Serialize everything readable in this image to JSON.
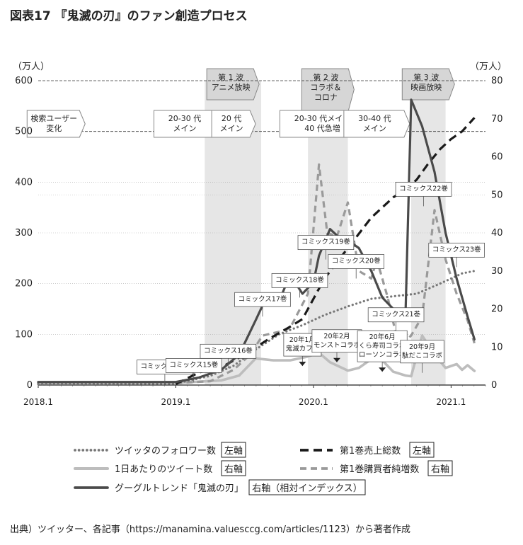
{
  "figure": {
    "title": "図表17 『鬼滅の刃』のファン創造プロセス",
    "source": "出典）ツイッター、各記事（https://manamina.valuesccg.com/articles/1123）から著者作成"
  },
  "chart_data": {
    "type": "line",
    "left_axis": {
      "unit": "（万人）",
      "ticks": [
        0,
        100,
        200,
        300,
        400,
        500,
        600
      ],
      "ylim": [
        0,
        600
      ]
    },
    "right_axis": {
      "unit": "（万人）",
      "ticks": [
        0,
        10,
        20,
        30,
        40,
        50,
        60,
        70,
        80
      ],
      "ylim": [
        0,
        80
      ]
    },
    "x_ticks": [
      {
        "label": "2018.1",
        "x": 2018.0
      },
      {
        "label": "2019.1",
        "x": 2019.0
      },
      {
        "label": "2020.1",
        "x": 2020.0
      },
      {
        "label": "2021.1",
        "x": 2021.0
      }
    ],
    "xlim": [
      2018.0,
      2021.25
    ],
    "shaded_periods": [
      {
        "from": 2019.21,
        "to": 2019.62,
        "label": "第 1 波\nアニメ放映"
      },
      {
        "from": 2019.96,
        "to": 2020.25,
        "label": "第 2 波\nコラボ＆\nコロナ"
      },
      {
        "from": 2020.71,
        "to": 2020.96,
        "label": "第 3 波\n映画放映"
      }
    ],
    "phases": [
      {
        "at": 2018.13,
        "label": "検索ユーザー\n変化"
      },
      {
        "at": 2019.08,
        "label": "20-30 代\nメイン"
      },
      {
        "at": 2019.42,
        "label": "20 代\nメイン"
      },
      {
        "at": 2020.08,
        "label": "20-30 代メイン\n40 代急増"
      },
      {
        "at": 2020.46,
        "label": "30-40 代\nメイン"
      }
    ],
    "series": [
      {
        "name": "ツイッタのフォロワー数",
        "axis_note": "左軸",
        "axis": "left",
        "style": "dotted",
        "color": "#777777",
        "points": [
          [
            2018.0,
            2
          ],
          [
            2019.0,
            3
          ],
          [
            2019.08,
            8
          ],
          [
            2019.25,
            18
          ],
          [
            2019.42,
            38
          ],
          [
            2019.58,
            70
          ],
          [
            2019.75,
            100
          ],
          [
            2019.92,
            118
          ],
          [
            2020.08,
            138
          ],
          [
            2020.25,
            155
          ],
          [
            2020.42,
            170
          ],
          [
            2020.58,
            175
          ],
          [
            2020.75,
            180
          ],
          [
            2020.92,
            200
          ],
          [
            2021.08,
            220
          ],
          [
            2021.17,
            225
          ]
        ]
      },
      {
        "name": "第1巻売上総数",
        "axis_note": "左軸",
        "axis": "left",
        "style": "dashed",
        "color": "#1a1a1a",
        "points": [
          [
            2019.0,
            2
          ],
          [
            2019.17,
            25
          ],
          [
            2019.33,
            35
          ],
          [
            2019.5,
            60
          ],
          [
            2019.67,
            90
          ],
          [
            2019.83,
            115
          ],
          [
            2019.92,
            130
          ],
          [
            2020.08,
            210
          ],
          [
            2020.25,
            270
          ],
          [
            2020.42,
            330
          ],
          [
            2020.58,
            370
          ],
          [
            2020.67,
            385
          ],
          [
            2020.75,
            405
          ],
          [
            2020.83,
            435
          ],
          [
            2020.92,
            465
          ],
          [
            2021.0,
            485
          ],
          [
            2021.08,
            500
          ],
          [
            2021.17,
            527
          ]
        ]
      },
      {
        "name": "1日あたりのツイート数",
        "axis_note": "右軸",
        "axis": "right",
        "style": "solid",
        "color": "#bdbdbd",
        "points": [
          [
            2018.0,
            0.5
          ],
          [
            2019.0,
            0.6
          ],
          [
            2019.17,
            0.9
          ],
          [
            2019.33,
            1.2
          ],
          [
            2019.46,
            2.5
          ],
          [
            2019.58,
            7
          ],
          [
            2019.71,
            6.5
          ],
          [
            2019.83,
            6.5
          ],
          [
            2019.96,
            7.5
          ],
          [
            2020.04,
            8.5
          ],
          [
            2020.12,
            6
          ],
          [
            2020.25,
            3.8
          ],
          [
            2020.33,
            4.5
          ],
          [
            2020.42,
            6.8
          ],
          [
            2020.5,
            6.5
          ],
          [
            2020.58,
            3.5
          ],
          [
            2020.67,
            2.5
          ],
          [
            2020.71,
            2.3
          ],
          [
            2020.79,
            13
          ],
          [
            2020.88,
            8
          ],
          [
            2020.96,
            4.5
          ],
          [
            2021.04,
            5.5
          ],
          [
            2021.08,
            4
          ],
          [
            2021.12,
            5.2
          ],
          [
            2021.17,
            3.7
          ]
        ]
      },
      {
        "name": "第1巻購買者純増数",
        "axis_note": "右軸",
        "axis": "right",
        "style": "dashed",
        "color": "#9a9a9a",
        "points": [
          [
            2019.0,
            0.5
          ],
          [
            2019.25,
            1
          ],
          [
            2019.42,
            4
          ],
          [
            2019.54,
            8
          ],
          [
            2019.63,
            13
          ],
          [
            2019.75,
            14
          ],
          [
            2019.83,
            15
          ],
          [
            2019.96,
            24
          ],
          [
            2020.04,
            58
          ],
          [
            2020.1,
            40
          ],
          [
            2020.17,
            39
          ],
          [
            2020.25,
            48
          ],
          [
            2020.33,
            30
          ],
          [
            2020.42,
            28
          ],
          [
            2020.46,
            33
          ],
          [
            2020.54,
            23
          ],
          [
            2020.62,
            10
          ],
          [
            2020.71,
            13
          ],
          [
            2020.79,
            18
          ],
          [
            2020.88,
            46
          ],
          [
            2020.96,
            33
          ],
          [
            2021.04,
            24
          ],
          [
            2021.12,
            17
          ],
          [
            2021.17,
            11
          ]
        ]
      },
      {
        "name": "グーグルトレンド「鬼滅の刃」",
        "axis_note": "右軸（相対インデックス）",
        "axis": "right",
        "style": "solid",
        "color": "#4a4a4a",
        "points": [
          [
            2018.0,
            0.8
          ],
          [
            2018.8,
            0.8
          ],
          [
            2019.0,
            0.8
          ],
          [
            2019.17,
            2
          ],
          [
            2019.33,
            4
          ],
          [
            2019.46,
            8
          ],
          [
            2019.58,
            17
          ],
          [
            2019.67,
            24
          ],
          [
            2019.75,
            22
          ],
          [
            2019.83,
            29
          ],
          [
            2019.92,
            24
          ],
          [
            2020.0,
            27
          ],
          [
            2020.04,
            34
          ],
          [
            2020.12,
            41
          ],
          [
            2020.21,
            38
          ],
          [
            2020.29,
            37
          ],
          [
            2020.33,
            36
          ],
          [
            2020.42,
            30
          ],
          [
            2020.5,
            23
          ],
          [
            2020.58,
            20
          ],
          [
            2020.67,
            20
          ],
          [
            2020.71,
            75
          ],
          [
            2020.79,
            68
          ],
          [
            2020.88,
            56
          ],
          [
            2020.96,
            40
          ],
          [
            2021.04,
            28
          ],
          [
            2021.12,
            18
          ],
          [
            2021.17,
            12
          ]
        ]
      }
    ],
    "annotations": [
      {
        "label": "コミックス14巻",
        "x": 2018.92,
        "axis": "left",
        "y": 2,
        "pos": "above",
        "icon": false
      },
      {
        "label": "コミックス15巻",
        "x": 2019.13,
        "axis": "left",
        "y": 5,
        "pos": "above",
        "icon": false
      },
      {
        "label": "コミックス16巻",
        "x": 2019.38,
        "axis": "left",
        "y": 33,
        "pos": "above",
        "icon": false
      },
      {
        "label": "コミックス17巻",
        "x": 2019.63,
        "axis": "right",
        "y": 18,
        "pos": "above",
        "icon": false
      },
      {
        "label": "コミックス18巻",
        "x": 2019.9,
        "axis": "right",
        "y": 23,
        "pos": "above",
        "icon": false
      },
      {
        "label": "コミックス19巻",
        "x": 2020.09,
        "axis": "right",
        "y": 33,
        "pos": "above",
        "icon": false
      },
      {
        "label": "コミックス20巻",
        "x": 2020.31,
        "axis": "right",
        "y": 28,
        "pos": "above",
        "icon": false
      },
      {
        "label": "コミックス21巻",
        "x": 2020.6,
        "axis": "right",
        "y": 14,
        "pos": "above",
        "icon": false
      },
      {
        "label": "コミックス22巻",
        "x": 2020.8,
        "axis": "right",
        "y": 47,
        "pos": "above",
        "icon": false
      },
      {
        "label": "コミックス23巻",
        "x": 2021.04,
        "axis": "right",
        "y": 31,
        "pos": "above",
        "icon": false
      },
      {
        "label": "20年1月\n鬼滅カフェ",
        "x": 2019.92,
        "axis": "right",
        "y": 5,
        "pos": "above",
        "icon": true
      },
      {
        "label": "20年2月\nモンストコラボ",
        "x": 2020.17,
        "axis": "right",
        "y": 6,
        "pos": "above",
        "icon": true
      },
      {
        "label": "20年6月\nくら寿司コラボ\nローソンコラボ",
        "x": 2020.5,
        "axis": "right",
        "y": 3.5,
        "pos": "above",
        "icon": true
      },
      {
        "label": "20年9月\n駄だこコラボ",
        "x": 2020.79,
        "axis": "right",
        "y": 3.2,
        "pos": "above",
        "icon": false
      }
    ]
  }
}
